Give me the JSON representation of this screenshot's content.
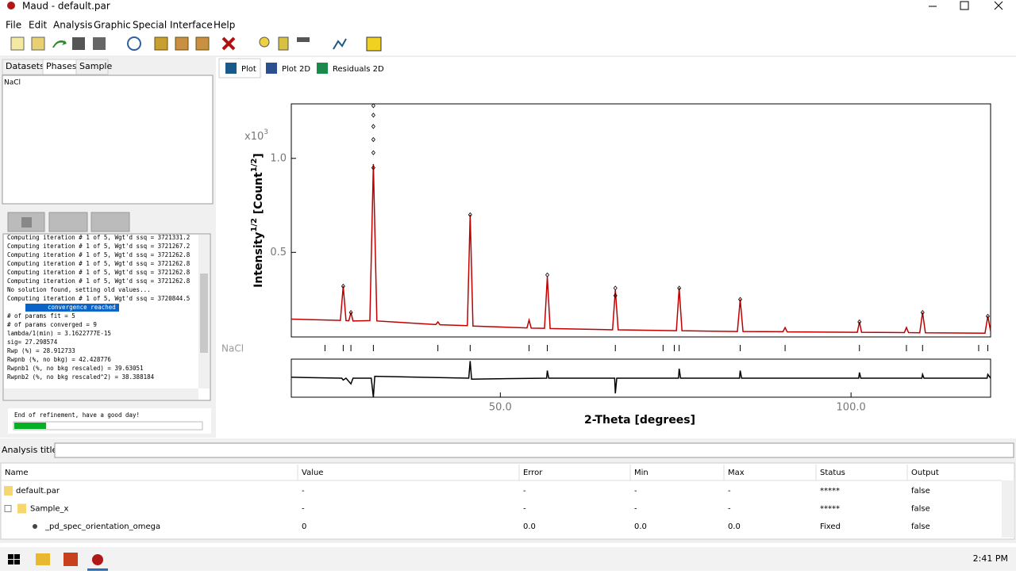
{
  "window": {
    "title": "Maud - default.par"
  },
  "menu": [
    "File",
    "Edit",
    "Analysis",
    "Graphic",
    "Special",
    "Interface",
    "Help"
  ],
  "left_tabs": [
    "Datasets",
    "Phases",
    "Sample"
  ],
  "phases": [
    "NaCl"
  ],
  "log": [
    {
      "text": "Computing iteration # 1 of 5, Wgt'd ssq = 3721331.2"
    },
    {
      "text": "Computing iteration # 1 of 5, Wgt'd ssq = 3721267.2"
    },
    {
      "text": "Computing iteration # 1 of 5, Wgt'd ssq = 3721262.8"
    },
    {
      "text": "Computing iteration # 1 of 5, Wgt'd ssq = 3721262.8"
    },
    {
      "text": "Computing iteration # 1 of 5, Wgt'd ssq = 3721262.8"
    },
    {
      "text": "Computing iteration # 1 of 5, Wgt'd ssq = 3721262.8"
    },
    {
      "text": "No solution found, setting old values..."
    },
    {
      "text": "Computing iteration # 1 of 5, Wgt'd ssq = 3720844.5"
    },
    {
      "text": "convergence reached",
      "selected": true
    },
    {
      "text": "# of params fit = 5"
    },
    {
      "text": "# of params converged = 9"
    },
    {
      "text": "lambda/1(min) = 3.1622777E-15"
    },
    {
      "text": "sig= 27.298574"
    },
    {
      "text": "Rwp (%) = 28.912733"
    },
    {
      "text": "Rwpnb (%, no bkg) = 42.428776"
    },
    {
      "text": "Rwpnb1 (%, no bkg rescaled) = 39.63051"
    },
    {
      "text": "Rwpnb2 (%, no bkg rescaled^2) = 38.388184"
    }
  ],
  "status": "End of refinement, have a good day!",
  "progress": {
    "value": 17,
    "max": 100
  },
  "plot_tabs": [
    "Plot",
    "Plot 2D",
    "Residuals 2D"
  ],
  "chart_data": [
    {
      "type": "line",
      "multiplier": [
        "x10",
        "3"
      ],
      "ylabel": [
        "Intensity",
        "1/2",
        " [Count",
        "1/2",
        "]"
      ],
      "xlim": [
        20.2,
        119.9
      ],
      "ylim": [
        0.05,
        1.29
      ],
      "yticks": [
        0.5,
        {
          "value": 1,
          "label": "1.0"
        }
      ],
      "series": [
        {
          "style": "line",
          "color": "#c00000",
          "x": [
            20.2,
            27.2,
            27.6,
            28.0,
            28.4,
            28.7,
            29.0,
            31.4,
            31.9,
            32.4,
            40.8,
            41.1,
            41.4,
            45.3,
            45.7,
            46.1,
            53.8,
            54.1,
            54.4,
            56.3,
            56.7,
            57.1,
            66.0,
            66.4,
            66.8,
            75.1,
            75.5,
            75.9,
            83.8,
            84.2,
            84.6,
            90.3,
            90.6,
            90.9,
            100.9,
            101.2,
            101.5,
            107.6,
            107.9,
            108.2,
            109.8,
            110.2,
            110.6,
            119.1,
            119.5,
            119.9
          ],
          "values": [
            0.145,
            0.138,
            0.32,
            0.137,
            0.136,
            0.18,
            0.135,
            0.137,
            0.97,
            0.135,
            0.116,
            0.13,
            0.115,
            0.11,
            0.7,
            0.108,
            0.098,
            0.14,
            0.097,
            0.096,
            0.37,
            0.095,
            0.088,
            0.3,
            0.088,
            0.083,
            0.31,
            0.083,
            0.079,
            0.25,
            0.079,
            0.078,
            0.1,
            0.077,
            0.075,
            0.13,
            0.075,
            0.073,
            0.1,
            0.073,
            0.072,
            0.18,
            0.072,
            0.07,
            0.16,
            0.08
          ]
        },
        {
          "style": "points",
          "color": "#000000",
          "x": [
            27.6,
            28.7,
            31.9,
            31.9,
            31.9,
            31.9,
            31.9,
            31.9,
            45.7,
            56.7,
            66.4,
            66.4,
            75.5,
            84.2,
            101.2,
            110.2,
            119.5
          ],
          "values": [
            0.32,
            0.18,
            1.28,
            1.23,
            1.17,
            1.1,
            1.03,
            0.95,
            0.7,
            0.38,
            0.31,
            0.27,
            0.31,
            0.25,
            0.13,
            0.18,
            0.16
          ]
        }
      ],
      "reflections": {
        "label": "NaCl",
        "positions": [
          25.0,
          27.6,
          28.7,
          31.9,
          41.1,
          45.7,
          54.1,
          56.7,
          66.4,
          73.2,
          74.8,
          75.5,
          84.2,
          90.6,
          101.2,
          107.9,
          110.2,
          118.2,
          119.5
        ]
      }
    },
    {
      "type": "line",
      "xlim": [
        20.2,
        119.9
      ],
      "ylim": [
        -0.1,
        0.1
      ],
      "xticks": [
        {
          "value": 50,
          "label": "50.0"
        },
        {
          "value": 100,
          "label": "100.0"
        }
      ],
      "xlabel": "2-Theta [degrees]",
      "series": [
        {
          "style": "line",
          "color": "#000000",
          "x": [
            20.2,
            27.4,
            27.6,
            28.0,
            28.7,
            29.0,
            31.6,
            31.9,
            32.1,
            45.5,
            45.7,
            45.9,
            56.6,
            56.7,
            56.9,
            66.3,
            66.4,
            66.6,
            75.4,
            75.5,
            75.7,
            84.1,
            84.2,
            84.4,
            101.1,
            101.2,
            101.4,
            110.1,
            110.2,
            110.4,
            119.4,
            119.5,
            119.9
          ],
          "values": [
            0.005,
            0,
            -0.01,
            0,
            -0.03,
            0,
            0,
            -0.1,
            0.01,
            0,
            0.09,
            -0.005,
            0,
            0.04,
            0,
            0,
            -0.08,
            0,
            0,
            0.05,
            0,
            0,
            0.04,
            0,
            0,
            0.03,
            0,
            0,
            0.02,
            0,
            0,
            0.02,
            0
          ]
        }
      ]
    }
  ],
  "analysis_title_label": "Analysis title:",
  "table": {
    "columns": [
      "Name",
      "Value",
      "Error",
      "Min",
      "Max",
      "Status",
      "Output"
    ],
    "rows": [
      [
        "default.par",
        "-",
        "-",
        "-",
        "-",
        "*****",
        "false"
      ],
      [
        "Sample_x",
        "-",
        "-",
        "-",
        "-",
        "*****",
        "false"
      ],
      [
        "_pd_spec_orientation_omega",
        "0",
        "0.0",
        "0.0",
        "0.0",
        "Fixed",
        "false"
      ]
    ]
  },
  "taskbar": {
    "time": "2:41 PM"
  }
}
